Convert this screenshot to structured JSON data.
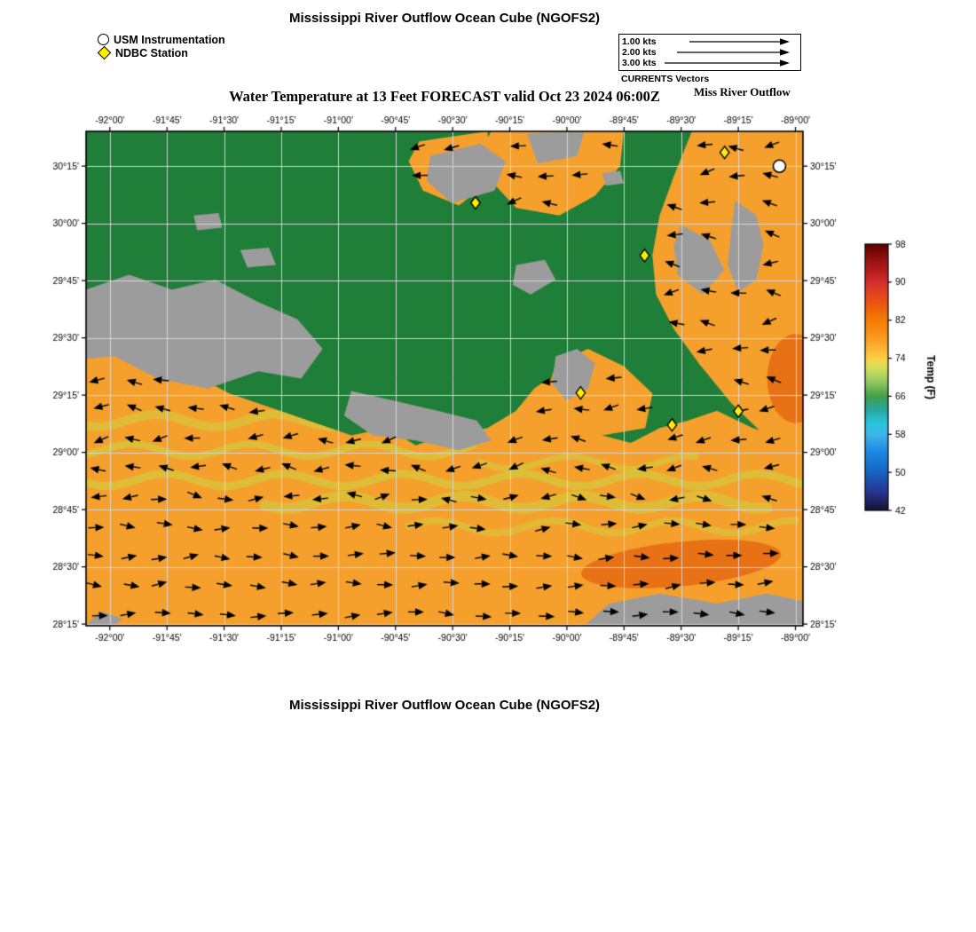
{
  "page": {
    "top_title": "Mississippi River Outflow Ocean Cube (NGOFS2)",
    "bottom_title": "Mississippi River Outflow Ocean Cube (NGOFS2)"
  },
  "legend": {
    "usm_label": "USM Instrumentation",
    "ndbc_label": "NDBC Station"
  },
  "currents_legend": {
    "caption": "CURRENTS Vectors",
    "side_label": "Miss River Outflow",
    "rows": [
      {
        "label": "1.00 kts",
        "line_x1": 28
      },
      {
        "label": "2.00 kts",
        "line_x1": 14
      },
      {
        "label": "3.00 kts",
        "line_x1": 0
      }
    ]
  },
  "plot": {
    "title": "Water Temperature at 13 Feet FORECAST valid Oct 23 2024 06:00Z"
  },
  "chart_data": {
    "type": "heatmap",
    "description": "Geographic water-temperature field with current vectors, Mississippi River outflow region",
    "x_ticks": [
      "-92°00'",
      "-91°45'",
      "-91°30'",
      "-91°15'",
      "-91°00'",
      "-90°45'",
      "-90°30'",
      "-90°15'",
      "-90°00'",
      "-89°45'",
      "-89°30'",
      "-89°15'",
      "-89°00'"
    ],
    "x_tick_lons": [
      -92.0,
      -91.75,
      -91.5,
      -91.25,
      -91.0,
      -90.75,
      -90.5,
      -90.25,
      -90.0,
      -89.75,
      -89.5,
      -89.25,
      -89.0
    ],
    "y_ticks": [
      "30°15'",
      "30°00'",
      "29°45'",
      "29°30'",
      "29°15'",
      "29°00'",
      "28°45'",
      "28°30'",
      "28°15'"
    ],
    "y_tick_lats": [
      30.25,
      30.0,
      29.75,
      29.5,
      29.25,
      29.0,
      28.75,
      28.5,
      28.25
    ],
    "lon_range": [
      -92.104,
      -88.967
    ],
    "lat_range": [
      28.243,
      30.402
    ],
    "stations_ndbc": [
      [
        -90.4,
        30.09
      ],
      [
        -89.31,
        30.31
      ],
      [
        -89.66,
        29.86
      ],
      [
        -89.94,
        29.26
      ],
      [
        -89.54,
        29.12
      ],
      [
        -89.25,
        29.18
      ]
    ],
    "stations_usm": [
      [
        -89.07,
        30.25
      ]
    ],
    "colors": {
      "land_green": "#1f7e38",
      "land_gray": "#9c9c9c",
      "water_base": "#f5a02d",
      "streak_yellow": "rgba(200,220,70,",
      "warm_orange": "rgba(228,98,14,0.75)",
      "grid": "rgba(216,216,216,0.95)",
      "vector": "#000000"
    },
    "features": {
      "water": [
        [
          [
            0,
            0.4
          ],
          [
            0.05,
            0.42
          ],
          [
            0.12,
            0.47
          ],
          [
            0.2,
            0.53
          ],
          [
            0.29,
            0.575
          ],
          [
            0.37,
            0.615
          ],
          [
            0.42,
            0.6
          ],
          [
            0.46,
            0.635
          ],
          [
            0.5,
            0.615
          ],
          [
            0.56,
            0.6
          ],
          [
            0.6,
            0.565
          ],
          [
            0.625,
            0.52
          ],
          [
            0.645,
            0.5
          ],
          [
            0.66,
            0.52
          ],
          [
            0.68,
            0.56
          ],
          [
            0.72,
            0.615
          ],
          [
            0.76,
            0.63
          ],
          [
            0.8,
            0.6
          ],
          [
            0.84,
            0.585
          ],
          [
            0.88,
            0.565
          ],
          [
            0.93,
            0.6
          ],
          [
            1,
            0.635
          ],
          [
            1,
            1
          ],
          [
            0,
            1
          ]
        ],
        [
          [
            0.845,
            0
          ],
          [
            1,
            0
          ],
          [
            1,
            0.66
          ],
          [
            0.95,
            0.62
          ],
          [
            0.9,
            0.55
          ],
          [
            0.855,
            0.47
          ],
          [
            0.82,
            0.4
          ],
          [
            0.795,
            0.33
          ],
          [
            0.79,
            0.25
          ],
          [
            0.8,
            0.17
          ],
          [
            0.82,
            0.09
          ]
        ],
        [
          [
            0.565,
            0
          ],
          [
            0.75,
            0
          ],
          [
            0.745,
            0.07
          ],
          [
            0.71,
            0.13
          ],
          [
            0.66,
            0.17
          ],
          [
            0.6,
            0.155
          ],
          [
            0.565,
            0.1
          ],
          [
            0.55,
            0.04
          ]
        ],
        [
          [
            0.465,
            0.02
          ],
          [
            0.56,
            0
          ],
          [
            0.565,
            0.1
          ],
          [
            0.52,
            0.15
          ],
          [
            0.47,
            0.12
          ],
          [
            0.45,
            0.06
          ]
        ],
        [
          [
            0.655,
            0.47
          ],
          [
            0.7,
            0.44
          ],
          [
            0.75,
            0.475
          ],
          [
            0.79,
            0.53
          ],
          [
            0.78,
            0.6
          ],
          [
            0.72,
            0.615
          ],
          [
            0.67,
            0.57
          ],
          [
            0.645,
            0.52
          ]
        ]
      ],
      "gray": [
        [
          [
            0,
            0.32
          ],
          [
            0.06,
            0.29
          ],
          [
            0.12,
            0.32
          ],
          [
            0.18,
            0.3
          ],
          [
            0.24,
            0.345
          ],
          [
            0.295,
            0.38
          ],
          [
            0.33,
            0.44
          ],
          [
            0.3,
            0.5
          ],
          [
            0.24,
            0.485
          ],
          [
            0.17,
            0.52
          ],
          [
            0.1,
            0.5
          ],
          [
            0.04,
            0.455
          ],
          [
            0,
            0.46
          ]
        ],
        [
          [
            0.37,
            0.525
          ],
          [
            0.43,
            0.545
          ],
          [
            0.49,
            0.565
          ],
          [
            0.545,
            0.585
          ],
          [
            0.565,
            0.625
          ],
          [
            0.52,
            0.645
          ],
          [
            0.46,
            0.625
          ],
          [
            0.4,
            0.615
          ],
          [
            0.36,
            0.575
          ]
        ],
        [
          [
            0.655,
            0.455
          ],
          [
            0.685,
            0.44
          ],
          [
            0.71,
            0.47
          ],
          [
            0.7,
            0.52
          ],
          [
            0.67,
            0.545
          ],
          [
            0.65,
            0.51
          ]
        ],
        [
          [
            0.905,
            0.14
          ],
          [
            0.935,
            0.17
          ],
          [
            0.945,
            0.23
          ],
          [
            0.935,
            0.3
          ],
          [
            0.91,
            0.325
          ],
          [
            0.895,
            0.27
          ],
          [
            0.9,
            0.2
          ]
        ],
        [
          [
            0.48,
            0.05
          ],
          [
            0.55,
            0.025
          ],
          [
            0.585,
            0.06
          ],
          [
            0.57,
            0.12
          ],
          [
            0.51,
            0.145
          ],
          [
            0.475,
            0.1
          ]
        ],
        [
          [
            0.615,
            0.005
          ],
          [
            0.695,
            0
          ],
          [
            0.685,
            0.05
          ],
          [
            0.63,
            0.065
          ]
        ],
        [
          [
            0.83,
            0.19
          ],
          [
            0.87,
            0.22
          ],
          [
            0.89,
            0.28
          ],
          [
            0.86,
            0.33
          ],
          [
            0.825,
            0.29
          ],
          [
            0.82,
            0.23
          ]
        ],
        [
          [
            0.695,
            1
          ],
          [
            0.73,
            0.955
          ],
          [
            0.8,
            0.935
          ],
          [
            0.88,
            0.955
          ],
          [
            0.95,
            0.935
          ],
          [
            1,
            0.95
          ],
          [
            1,
            1
          ]
        ],
        [
          [
            0,
            1
          ],
          [
            0.02,
            0.97
          ],
          [
            0.05,
            0.985
          ],
          [
            0.04,
            1
          ]
        ],
        [
          [
            0.6,
            0.27
          ],
          [
            0.64,
            0.26
          ],
          [
            0.655,
            0.3
          ],
          [
            0.62,
            0.33
          ],
          [
            0.595,
            0.31
          ]
        ],
        [
          [
            0.72,
            0.085
          ],
          [
            0.745,
            0.08
          ],
          [
            0.75,
            0.105
          ],
          [
            0.725,
            0.11
          ]
        ],
        [
          [
            0.15,
            0.17
          ],
          [
            0.185,
            0.165
          ],
          [
            0.19,
            0.195
          ],
          [
            0.155,
            0.2
          ]
        ],
        [
          [
            0.215,
            0.24
          ],
          [
            0.255,
            0.235
          ],
          [
            0.265,
            0.27
          ],
          [
            0.225,
            0.275
          ]
        ]
      ],
      "streaks": [
        {
          "y": 0.585,
          "x0": 0,
          "x1": 0.4,
          "w": 10,
          "a": 0.45,
          "ph": 1.0
        },
        {
          "y": 0.645,
          "x0": 0,
          "x1": 0.55,
          "w": 8,
          "a": 0.5,
          "ph": 2.3
        },
        {
          "y": 0.705,
          "x0": 0,
          "x1": 1,
          "w": 9,
          "a": 0.5,
          "ph": 0.5
        },
        {
          "y": 0.75,
          "x0": 0.25,
          "x1": 0.95,
          "w": 12,
          "a": 0.45,
          "ph": 3.6
        },
        {
          "y": 0.8,
          "x0": 0.45,
          "x1": 1,
          "w": 8,
          "a": 0.4,
          "ph": 5.0
        },
        {
          "y": 0.67,
          "x0": 0.55,
          "x1": 0.85,
          "w": 7,
          "a": 0.45,
          "ph": 4.2
        },
        {
          "y": 0.56,
          "x0": 0.4,
          "x1": 0.6,
          "w": 10,
          "a": 0.5,
          "ph": 2.0
        }
      ],
      "warm_blobs": [
        {
          "cx": 0.83,
          "cy": 0.875,
          "rx": 0.14,
          "ry": 0.045,
          "rot": -0.1
        },
        {
          "cx": 0.99,
          "cy": 0.5,
          "rx": 0.04,
          "ry": 0.09,
          "rot": 0
        }
      ]
    }
  },
  "colorbar": {
    "title": "Temp (F)",
    "ticks": [
      98,
      90,
      82,
      74,
      66,
      58,
      50,
      42
    ],
    "min": 42,
    "max": 98,
    "stops": [
      [
        0,
        "#600000"
      ],
      [
        0.05,
        "#8c0f0f"
      ],
      [
        0.1,
        "#b71c1c"
      ],
      [
        0.143,
        "#d32f2f"
      ],
      [
        0.2,
        "#e64a19"
      ],
      [
        0.286,
        "#f57c00"
      ],
      [
        0.36,
        "#fb9e23"
      ],
      [
        0.43,
        "#fdd045"
      ],
      [
        0.465,
        "#d4e157"
      ],
      [
        0.51,
        "#9ccc65"
      ],
      [
        0.571,
        "#43a047"
      ],
      [
        0.62,
        "#26a69a"
      ],
      [
        0.67,
        "#26c6da"
      ],
      [
        0.714,
        "#3fb6e8"
      ],
      [
        0.78,
        "#1e88e5"
      ],
      [
        0.857,
        "#1565c0"
      ],
      [
        0.93,
        "#283593"
      ],
      [
        1,
        "#141432"
      ]
    ]
  }
}
